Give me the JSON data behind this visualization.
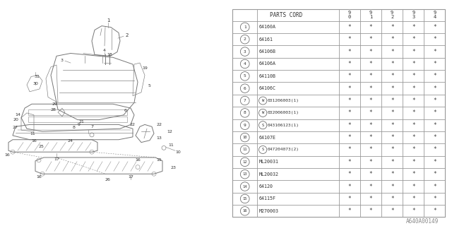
{
  "watermark": "A640A00149",
  "rows": [
    [
      "1",
      "64160A",
      "*",
      "*",
      "*",
      "*",
      "*"
    ],
    [
      "2",
      "64161",
      "*",
      "*",
      "*",
      "*",
      "*"
    ],
    [
      "3",
      "64106B",
      "*",
      "*",
      "*",
      "*",
      "*"
    ],
    [
      "4",
      "64106A",
      "*",
      "*",
      "*",
      "*",
      "*"
    ],
    [
      "5",
      "64110B",
      "*",
      "*",
      "*",
      "*",
      "*"
    ],
    [
      "6",
      "64106C",
      "*",
      "*",
      "*",
      "*",
      "*"
    ],
    [
      "7",
      "W031206003(1)",
      "*",
      "*",
      "*",
      "*",
      "*"
    ],
    [
      "8",
      "W032006003(1)",
      "*",
      "*",
      "*",
      "*",
      "*"
    ],
    [
      "9",
      "S043106123(1)",
      "*",
      "*",
      "*",
      "*",
      "*"
    ],
    [
      "10",
      "64107E",
      "*",
      "*",
      "*",
      "*",
      "*"
    ],
    [
      "11",
      "S047204073(2)",
      "*",
      "*",
      "*",
      "*",
      "*"
    ],
    [
      "12",
      "ML20031",
      "*",
      "*",
      "*",
      "*",
      "*"
    ],
    [
      "13",
      "ML20032",
      "*",
      "*",
      "*",
      "*",
      "*"
    ],
    [
      "14",
      "64120",
      "*",
      "*",
      "*",
      "*",
      "*"
    ],
    [
      "15",
      "64115F",
      "*",
      "*",
      "*",
      "*",
      "*"
    ],
    [
      "16",
      "M270003",
      "*",
      "*",
      "*",
      "*",
      "*"
    ]
  ],
  "col_props": [
    0.115,
    0.385,
    0.1,
    0.1,
    0.1,
    0.1,
    0.1
  ],
  "bg_color": "#ffffff",
  "line_color": "#999999",
  "text_color": "#333333"
}
